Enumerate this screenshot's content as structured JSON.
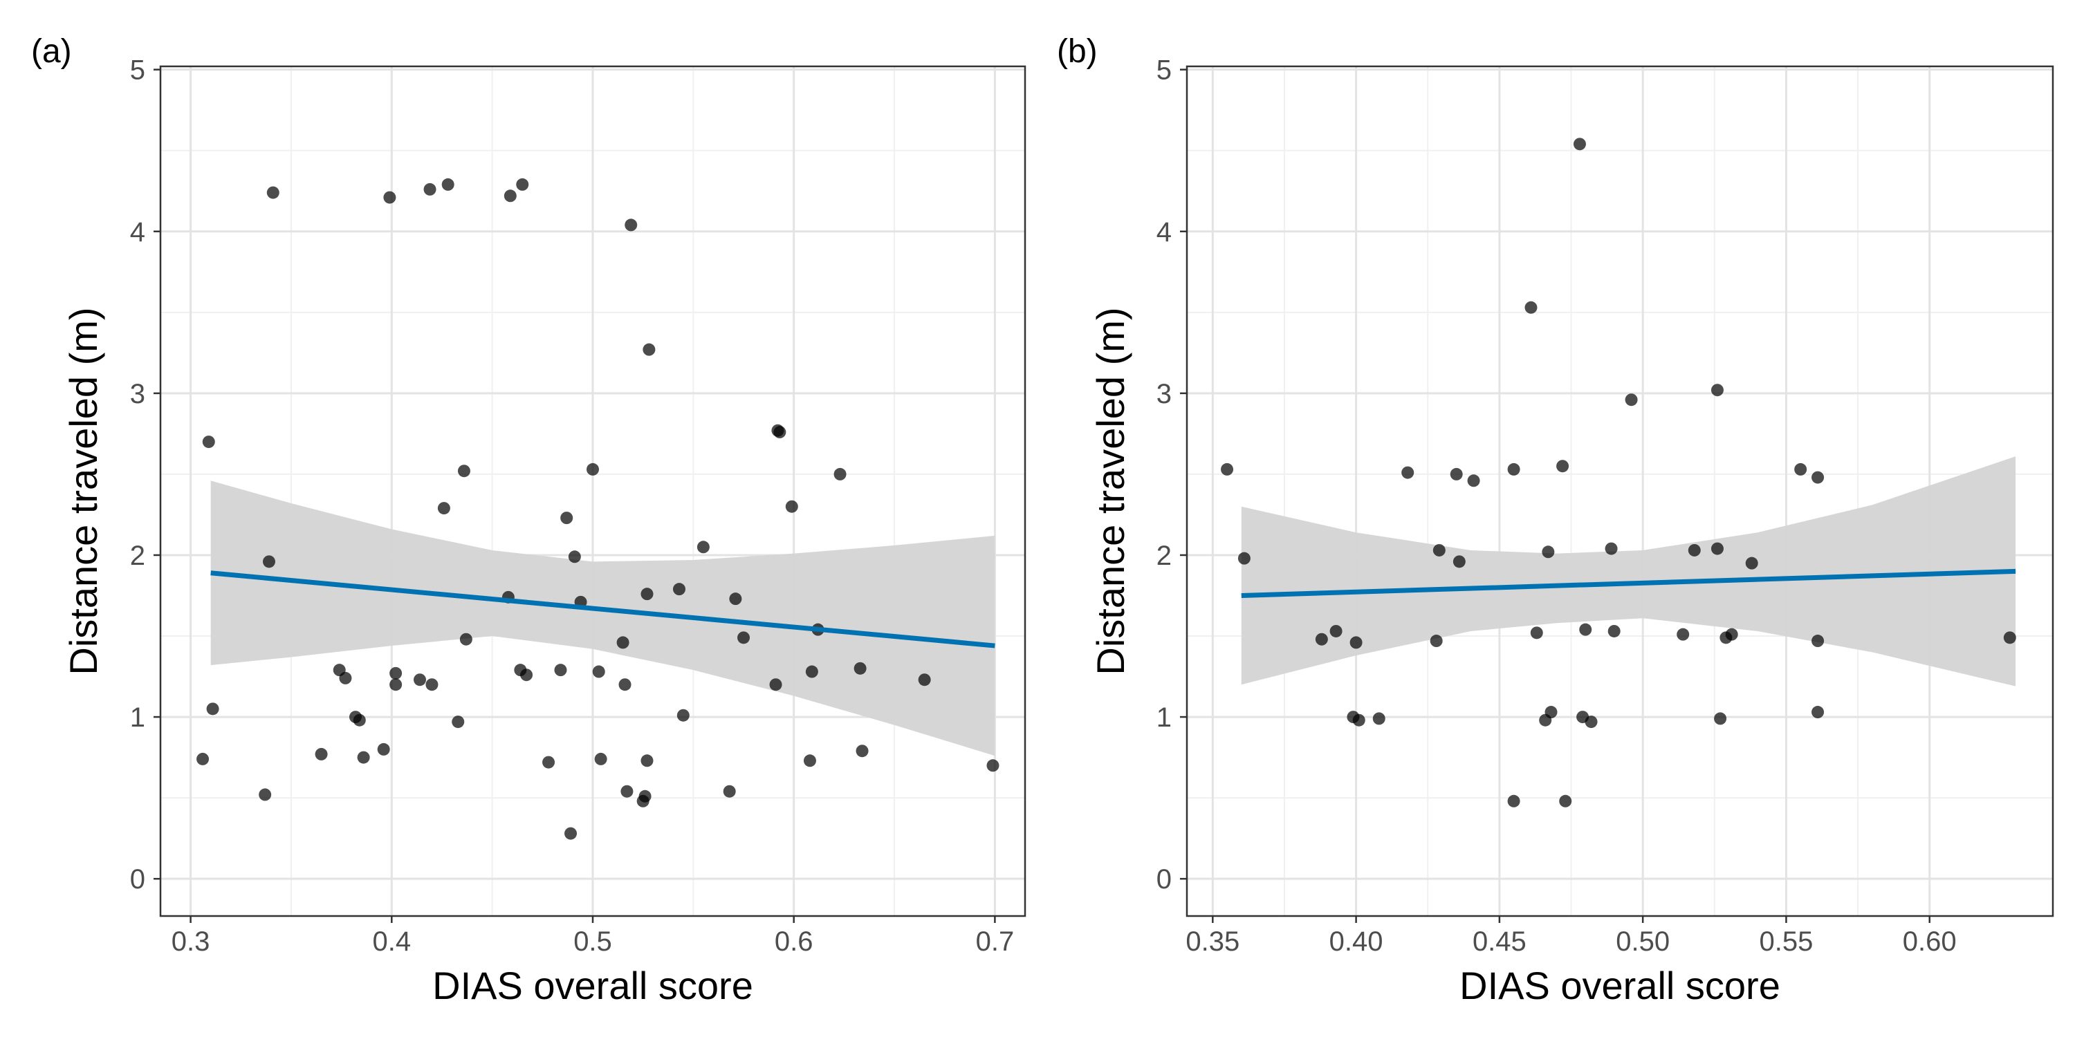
{
  "chart_data": [
    {
      "panel": "(a)",
      "type": "scatter",
      "xlabel": "DIAS overall score",
      "ylabel": "Distance traveled (m)",
      "xlim": [
        0.285,
        0.715
      ],
      "ylim": [
        -0.23,
        5.02
      ],
      "xticks": [
        0.3,
        0.4,
        0.5,
        0.6,
        0.7
      ],
      "xtick_labels": [
        "0.3",
        "0.4",
        "0.5",
        "0.6",
        "0.7"
      ],
      "yticks": [
        0,
        1,
        2,
        3,
        4,
        5
      ],
      "ytick_labels": [
        "0",
        "1",
        "2",
        "3",
        "4",
        "5"
      ],
      "grid": true,
      "point_color": "#000000",
      "points": [
        [
          0.306,
          0.74
        ],
        [
          0.309,
          2.7
        ],
        [
          0.311,
          1.05
        ],
        [
          0.337,
          0.52
        ],
        [
          0.339,
          1.96
        ],
        [
          0.341,
          4.24
        ],
        [
          0.365,
          0.77
        ],
        [
          0.374,
          1.29
        ],
        [
          0.377,
          1.24
        ],
        [
          0.382,
          1.0
        ],
        [
          0.384,
          0.98
        ],
        [
          0.386,
          0.75
        ],
        [
          0.396,
          0.8
        ],
        [
          0.399,
          4.21
        ],
        [
          0.402,
          1.27
        ],
        [
          0.402,
          1.2
        ],
        [
          0.414,
          1.23
        ],
        [
          0.419,
          4.26
        ],
        [
          0.42,
          1.2
        ],
        [
          0.426,
          2.29
        ],
        [
          0.428,
          4.29
        ],
        [
          0.433,
          0.97
        ],
        [
          0.436,
          2.52
        ],
        [
          0.437,
          1.48
        ],
        [
          0.458,
          1.74
        ],
        [
          0.459,
          4.22
        ],
        [
          0.464,
          1.29
        ],
        [
          0.465,
          4.29
        ],
        [
          0.467,
          1.26
        ],
        [
          0.478,
          0.72
        ],
        [
          0.484,
          1.29
        ],
        [
          0.487,
          2.23
        ],
        [
          0.489,
          0.28
        ],
        [
          0.491,
          1.99
        ],
        [
          0.494,
          1.71
        ],
        [
          0.5,
          2.53
        ],
        [
          0.503,
          1.28
        ],
        [
          0.504,
          0.74
        ],
        [
          0.515,
          1.46
        ],
        [
          0.516,
          1.2
        ],
        [
          0.517,
          0.54
        ],
        [
          0.519,
          4.04
        ],
        [
          0.525,
          0.48
        ],
        [
          0.526,
          0.51
        ],
        [
          0.527,
          1.76
        ],
        [
          0.527,
          0.73
        ],
        [
          0.528,
          3.27
        ],
        [
          0.543,
          1.79
        ],
        [
          0.545,
          1.01
        ],
        [
          0.555,
          2.05
        ],
        [
          0.568,
          0.54
        ],
        [
          0.571,
          1.73
        ],
        [
          0.575,
          1.49
        ],
        [
          0.591,
          1.2
        ],
        [
          0.592,
          2.77
        ],
        [
          0.593,
          2.76
        ],
        [
          0.599,
          2.3
        ],
        [
          0.608,
          0.73
        ],
        [
          0.609,
          1.28
        ],
        [
          0.612,
          1.54
        ],
        [
          0.623,
          2.5
        ],
        [
          0.633,
          1.3
        ],
        [
          0.634,
          0.79
        ],
        [
          0.665,
          1.23
        ],
        [
          0.699,
          0.7
        ]
      ],
      "fit_line": {
        "x": [
          0.31,
          0.7
        ],
        "y": [
          1.89,
          1.44
        ],
        "color": "#0072B2"
      },
      "confidence_band": {
        "x": [
          0.31,
          0.35,
          0.4,
          0.45,
          0.5,
          0.55,
          0.6,
          0.65,
          0.7
        ],
        "upper": [
          2.46,
          2.32,
          2.16,
          2.03,
          1.96,
          1.97,
          2.01,
          2.06,
          2.12
        ],
        "lower": [
          1.32,
          1.37,
          1.44,
          1.5,
          1.42,
          1.29,
          1.13,
          0.95,
          0.76
        ],
        "color": "#d4d4d4"
      }
    },
    {
      "panel": "(b)",
      "type": "scatter",
      "xlabel": "DIAS overall score",
      "ylabel": "Distance traveled (m)",
      "xlim": [
        0.341,
        0.643
      ],
      "ylim": [
        -0.23,
        5.02
      ],
      "xticks": [
        0.35,
        0.4,
        0.45,
        0.5,
        0.55,
        0.6
      ],
      "xtick_labels": [
        "0.35",
        "0.40",
        "0.45",
        "0.50",
        "0.55",
        "0.60"
      ],
      "yticks": [
        0,
        1,
        2,
        3,
        4,
        5
      ],
      "ytick_labels": [
        "0",
        "1",
        "2",
        "3",
        "4",
        "5"
      ],
      "grid": true,
      "point_color": "#000000",
      "points": [
        [
          0.355,
          2.53
        ],
        [
          0.361,
          1.98
        ],
        [
          0.388,
          1.48
        ],
        [
          0.393,
          1.53
        ],
        [
          0.399,
          1.0
        ],
        [
          0.4,
          1.46
        ],
        [
          0.401,
          0.98
        ],
        [
          0.408,
          0.99
        ],
        [
          0.418,
          2.51
        ],
        [
          0.428,
          1.47
        ],
        [
          0.429,
          2.03
        ],
        [
          0.435,
          2.5
        ],
        [
          0.436,
          1.96
        ],
        [
          0.441,
          2.46
        ],
        [
          0.455,
          2.53
        ],
        [
          0.455,
          0.48
        ],
        [
          0.461,
          3.53
        ],
        [
          0.463,
          1.52
        ],
        [
          0.466,
          0.98
        ],
        [
          0.467,
          2.02
        ],
        [
          0.468,
          1.03
        ],
        [
          0.472,
          2.55
        ],
        [
          0.473,
          0.48
        ],
        [
          0.478,
          4.54
        ],
        [
          0.479,
          1.0
        ],
        [
          0.48,
          1.54
        ],
        [
          0.482,
          0.97
        ],
        [
          0.489,
          2.04
        ],
        [
          0.49,
          1.53
        ],
        [
          0.496,
          2.96
        ],
        [
          0.514,
          1.51
        ],
        [
          0.518,
          2.03
        ],
        [
          0.526,
          3.02
        ],
        [
          0.526,
          2.04
        ],
        [
          0.527,
          0.99
        ],
        [
          0.529,
          1.49
        ],
        [
          0.531,
          1.51
        ],
        [
          0.538,
          1.95
        ],
        [
          0.555,
          2.53
        ],
        [
          0.561,
          2.48
        ],
        [
          0.561,
          1.47
        ],
        [
          0.561,
          1.03
        ],
        [
          0.628,
          1.49
        ]
      ],
      "fit_line": {
        "x": [
          0.36,
          0.63
        ],
        "y": [
          1.75,
          1.9
        ],
        "color": "#0072B2"
      },
      "confidence_band": {
        "x": [
          0.36,
          0.4,
          0.44,
          0.47,
          0.5,
          0.54,
          0.58,
          0.63
        ],
        "upper": [
          2.3,
          2.14,
          2.03,
          2.01,
          2.03,
          2.14,
          2.31,
          2.61
        ],
        "lower": [
          1.2,
          1.38,
          1.53,
          1.58,
          1.61,
          1.53,
          1.4,
          1.19
        ],
        "color": "#d4d4d4"
      }
    }
  ]
}
